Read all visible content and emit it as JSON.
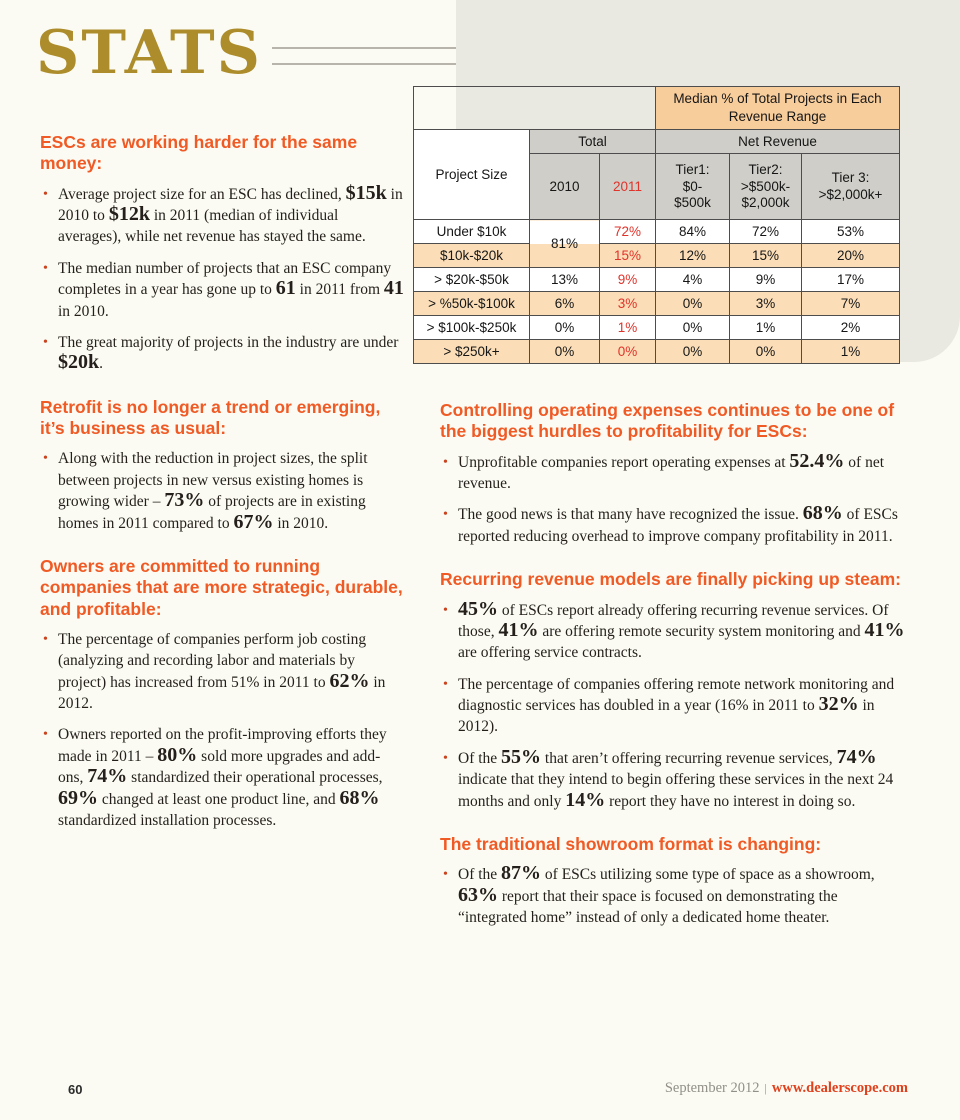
{
  "page": {
    "masthead": "STATS"
  },
  "table": {
    "title": "Median % of Total Projects in Each Revenue Range",
    "corner_label": "Project Size",
    "group_total": "Total",
    "group_net_revenue": "Net Revenue",
    "col_headers": [
      "2010",
      "2011",
      "Tier1:\n$0-\n$500k",
      "Tier2:\n>$500k-\n$2,000k",
      "Tier 3:\n>$2,000k+"
    ],
    "rows": [
      {
        "label": "Under $10k",
        "y2010": "81%",
        "rowspan2010": true,
        "y2011": "72%",
        "tier1": "84%",
        "tier2": "72%",
        "tier3": "53%"
      },
      {
        "label": "$10k-$20k",
        "y2010": null,
        "y2011": "15%",
        "tier1": "12%",
        "tier2": "15%",
        "tier3": "20%"
      },
      {
        "label": "> $20k-$50k",
        "y2010": "13%",
        "y2011": "9%",
        "tier1": "4%",
        "tier2": "9%",
        "tier3": "17%"
      },
      {
        "label": "> %50k-$100k",
        "y2010": "6%",
        "y2011": "3%",
        "tier1": "0%",
        "tier2": "3%",
        "tier3": "7%"
      },
      {
        "label": "> $100k-$250k",
        "y2010": "0%",
        "y2011": "1%",
        "tier1": "0%",
        "tier2": "1%",
        "tier3": "2%"
      },
      {
        "label": "> $250k+",
        "y2010": "0%",
        "y2011": "0%",
        "tier1": "0%",
        "tier2": "0%",
        "tier3": "1%"
      }
    ]
  },
  "columns": {
    "left": [
      {
        "heading": "ESCs are working harder for the same money:",
        "bullets": [
          [
            {
              "t": "Average project size for an ESC has declined, "
            },
            {
              "t": "$15k",
              "b": true
            },
            {
              "t": " in 2010 to "
            },
            {
              "t": "$12k",
              "b": true
            },
            {
              "t": " in 2011 (median of individual averages), while net revenue has stayed the same."
            }
          ],
          [
            {
              "t": "The median number of projects that an ESC company completes in a year has gone up to "
            },
            {
              "t": "61",
              "b": true
            },
            {
              "t": " in 2011 from "
            },
            {
              "t": "41",
              "b": true
            },
            {
              "t": " in 2010."
            }
          ],
          [
            {
              "t": "The great majority of projects in the industry are under "
            },
            {
              "t": "$20k",
              "b": true
            },
            {
              "t": "."
            }
          ]
        ]
      },
      {
        "heading": "Retrofit is no longer a trend or emerging, it’s business as usual:",
        "bullets": [
          [
            {
              "t": "Along with the reduction in project sizes, the split between projects in new versus existing homes is growing wider – "
            },
            {
              "t": "73%",
              "b": true
            },
            {
              "t": " of projects are in existing homes in 2011 compared to "
            },
            {
              "t": "67%",
              "b": true
            },
            {
              "t": " in 2010."
            }
          ]
        ]
      },
      {
        "heading": "Owners are committed to running companies that are more strategic, durable, and profitable:",
        "bullets": [
          [
            {
              "t": "The percentage of companies perform job costing (analyzing and recording labor and materials by project) has increased from 51% in 2011 to "
            },
            {
              "t": "62%",
              "b": true
            },
            {
              "t": " in 2012."
            }
          ],
          [
            {
              "t": "Owners reported on the profit-improving efforts they made in 2011 – "
            },
            {
              "t": "80%",
              "b": true
            },
            {
              "t": " sold more upgrades and add-ons, "
            },
            {
              "t": "74%",
              "b": true
            },
            {
              "t": " standardized their operational processes, "
            },
            {
              "t": "69%",
              "b": true
            },
            {
              "t": " changed at least one product line, and "
            },
            {
              "t": "68%",
              "b": true
            },
            {
              "t": " standardized installation processes."
            }
          ]
        ]
      }
    ],
    "right": [
      {
        "heading": "Controlling operating expenses continues to be one of the biggest hurdles to profitability for ESCs:",
        "bullets": [
          [
            {
              "t": "Unprofitable companies report operating expenses at "
            },
            {
              "t": "52.4%",
              "b": true
            },
            {
              "t": " of net revenue."
            }
          ],
          [
            {
              "t": "The good news is that many have recognized the issue. "
            },
            {
              "t": "68%",
              "b": true
            },
            {
              "t": " of ESCs reported reducing overhead to improve company profitability in 2011."
            }
          ]
        ]
      },
      {
        "heading": "Recurring revenue models are finally picking up steam:",
        "bullets": [
          [
            {
              "t": "45%",
              "b": true
            },
            {
              "t": " of ESCs report already offering recurring revenue services. Of those, "
            },
            {
              "t": "41%",
              "b": true
            },
            {
              "t": " are offering remote security system monitoring and "
            },
            {
              "t": "41%",
              "b": true
            },
            {
              "t": " are offering service contracts."
            }
          ],
          [
            {
              "t": "The percentage of companies offering remote network monitoring and diagnostic services has doubled in a year (16% in 2011 to "
            },
            {
              "t": "32%",
              "b": true
            },
            {
              "t": " in 2012)."
            }
          ],
          [
            {
              "t": "Of the "
            },
            {
              "t": "55%",
              "b": true
            },
            {
              "t": " that aren’t offering recurring revenue services, "
            },
            {
              "t": "74%",
              "b": true
            },
            {
              "t": " indicate that they intend to begin offering these services in the next 24 months and only "
            },
            {
              "t": "14%",
              "b": true
            },
            {
              "t": " report they have no interest in doing so."
            }
          ]
        ]
      },
      {
        "heading": "The traditional showroom format is changing:",
        "bullets": [
          [
            {
              "t": "Of the "
            },
            {
              "t": "87%",
              "b": true
            },
            {
              "t": " of ESCs utilizing some type of space as a showroom, "
            },
            {
              "t": "63%",
              "b": true
            },
            {
              "t": " report that their space is focused on demonstrating the “integrated home” instead of only a dedicated home theater."
            }
          ]
        ]
      }
    ]
  },
  "footer": {
    "page_number": "60",
    "issue_date": "September 2012",
    "separator": "|",
    "website": "www.dealerscope.com"
  }
}
